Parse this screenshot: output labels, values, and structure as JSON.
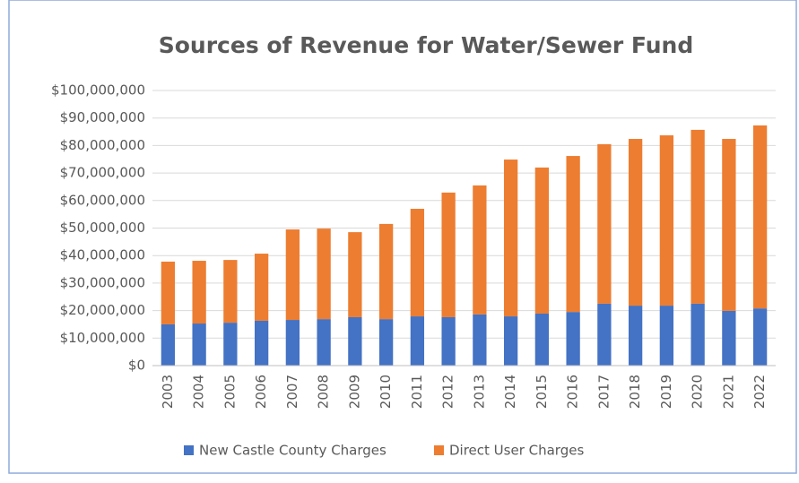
{
  "chart_data": {
    "type": "stacked_bar",
    "title": "Sources of Revenue for Water/Sewer Fund",
    "categories": [
      "2003",
      "2004",
      "2005",
      "2006",
      "2007",
      "2008",
      "2009",
      "2010",
      "2011",
      "2012",
      "2013",
      "2014",
      "2015",
      "2016",
      "2017",
      "2018",
      "2019",
      "2020",
      "2021",
      "2022"
    ],
    "series": [
      {
        "name": "New Castle County Charges",
        "color": "#4472c4",
        "values": [
          15000000,
          15300000,
          15600000,
          16300000,
          16600000,
          16900000,
          17600000,
          16900000,
          17900000,
          17600000,
          18600000,
          17900000,
          18900000,
          19500000,
          22500000,
          21800000,
          21800000,
          22500000,
          19900000,
          20800000
        ]
      },
      {
        "name": "Direct User Charges",
        "color": "#ed7d31",
        "values": [
          22800000,
          22800000,
          22800000,
          24400000,
          32900000,
          32900000,
          30900000,
          34600000,
          39100000,
          45300000,
          46900000,
          57000000,
          53100000,
          56700000,
          58000000,
          60600000,
          61900000,
          63200000,
          62500000,
          66500000
        ]
      }
    ],
    "ylim": [
      0,
      100000000
    ],
    "yticks": [
      {
        "value": 0,
        "label": "$0"
      },
      {
        "value": 10000000,
        "label": "$10,000,000"
      },
      {
        "value": 20000000,
        "label": "$20,000,000"
      },
      {
        "value": 30000000,
        "label": "$30,000,000"
      },
      {
        "value": 40000000,
        "label": "$40,000,000"
      },
      {
        "value": 50000000,
        "label": "$50,000,000"
      },
      {
        "value": 60000000,
        "label": "$60,000,000"
      },
      {
        "value": 70000000,
        "label": "$70,000,000"
      },
      {
        "value": 80000000,
        "label": "$80,000,000"
      },
      {
        "value": 90000000,
        "label": "$90,000,000"
      },
      {
        "value": 100000000,
        "label": "$100,000,000"
      }
    ],
    "grid": true,
    "legend": "bottom"
  }
}
